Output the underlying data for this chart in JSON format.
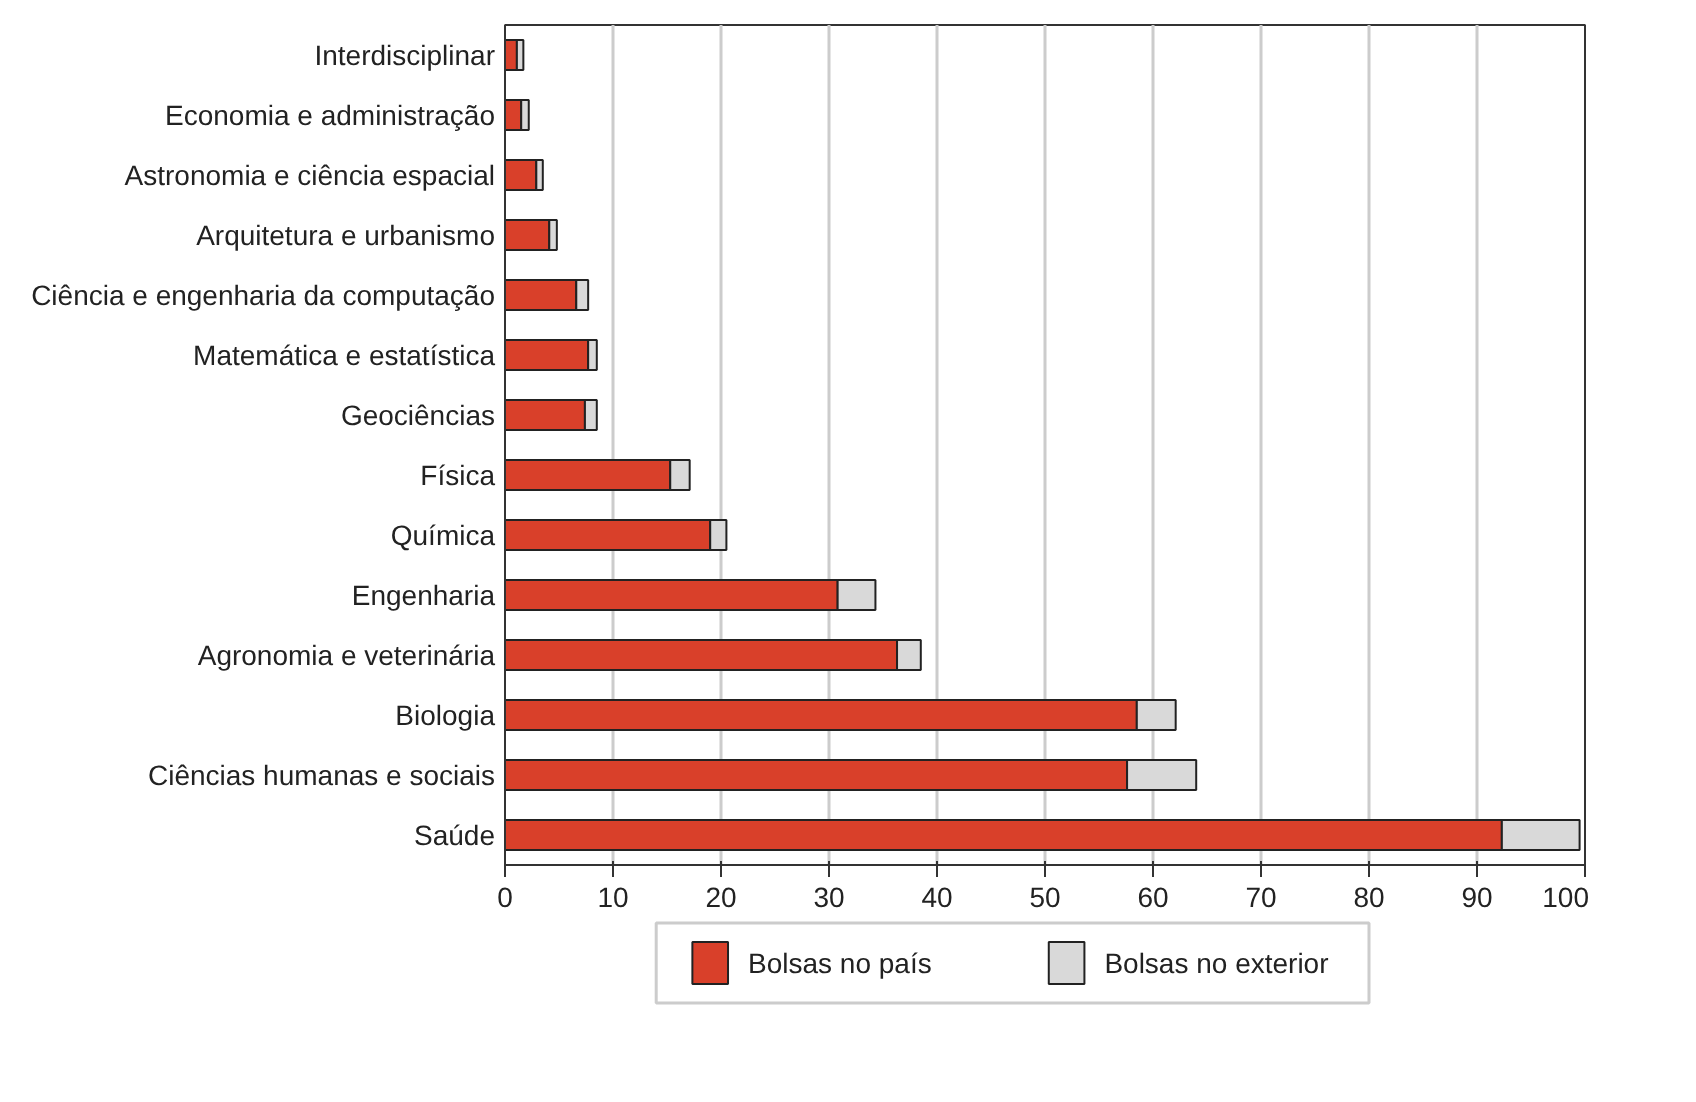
{
  "chart_data": {
    "type": "bar",
    "orientation": "horizontal",
    "stacked": true,
    "categories": [
      "Interdisciplinar",
      "Economia e administração",
      "Astronomia e ciência espacial",
      "Arquitetura e urbanismo",
      "Ciência e engenharia da computação",
      "Matemática e estatística",
      "Geociências",
      "Física",
      "Química",
      "Engenharia",
      "Agronomia e veterinária",
      "Biologia",
      "Ciências humanas e sociais",
      "Saúde"
    ],
    "series": [
      {
        "name": "Bolsas no país",
        "color": "#d9402a",
        "values": [
          1.1,
          1.5,
          2.9,
          4.1,
          6.6,
          7.7,
          7.4,
          15.3,
          19.0,
          30.8,
          36.3,
          58.5,
          57.6,
          92.3
        ]
      },
      {
        "name": "Bolsas no exterior",
        "color": "#d9d9d9",
        "values": [
          0.6,
          0.7,
          0.6,
          0.7,
          1.1,
          0.8,
          1.1,
          1.8,
          1.5,
          3.5,
          2.2,
          3.6,
          6.4,
          7.2
        ]
      }
    ],
    "xlim": [
      0,
      100
    ],
    "xticks": [
      0,
      10,
      20,
      30,
      40,
      50,
      60,
      70,
      80,
      90,
      100
    ],
    "grid": "x",
    "legend": "bottom"
  }
}
